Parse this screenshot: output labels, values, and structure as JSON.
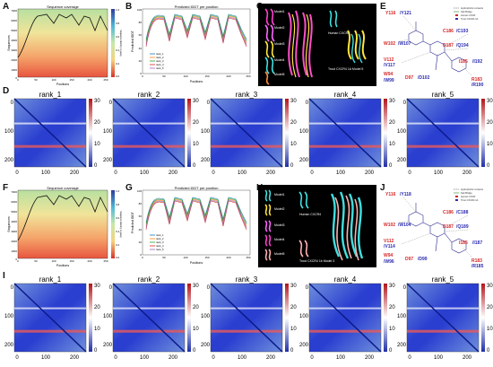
{
  "panels": {
    "A": "A",
    "B": "B",
    "C": "C",
    "D": "D",
    "E": "E",
    "F": "F",
    "G": "G",
    "H": "H",
    "I": "I",
    "J": "J"
  },
  "coverage": {
    "title": "Sequence coverage",
    "xlabel": "Positions",
    "ylabel": "Sequences",
    "yticks": [
      "7000",
      "6000",
      "5000",
      "4000",
      "3000",
      "2000",
      "1000",
      "0"
    ],
    "xticks": [
      "0",
      "50",
      "100",
      "150",
      "200",
      "250"
    ],
    "colorbar_ticks": [
      "1.0",
      "0.8",
      "0.6",
      "0.4",
      "0.2",
      "0.0"
    ],
    "colorbar_label": "Sequence identity to query"
  },
  "plddt": {
    "title": "Predicted lDDT per position",
    "xlabel": "Positions",
    "ylabel": "Predicted lDDT",
    "yticks": [
      "100",
      "80",
      "60",
      "40",
      "20",
      "0"
    ],
    "xticks": [
      "0",
      "50",
      "100",
      "150",
      "200",
      "250"
    ],
    "legend": [
      "rank_1",
      "rank_2",
      "rank_3",
      "rank_4",
      "rank_5"
    ],
    "colors": [
      "#1f77b4",
      "#ff7f0e",
      "#2ca02c",
      "#d62728",
      "#9467bd"
    ]
  },
  "structures": {
    "top": {
      "models": [
        "Model1",
        "Model2",
        "Model3",
        "Model4",
        "Model5"
      ],
      "human_label": "Human CXCR4",
      "trout_label": "Trout CXCR4 1A Model 5"
    },
    "bottom": {
      "models": [
        "Model1",
        "Model2",
        "Model3",
        "Model4",
        "Model5"
      ],
      "human_label": "Human CXCR4",
      "trout_label": "Trout CXCR4 1b Model 3"
    }
  },
  "interactions": {
    "legend": [
      "Hydrophobic contacts",
      "Salt Bridge",
      "Human CXCR",
      "Trout CXCR4 1A"
    ],
    "top": [
      {
        "human": "Y116",
        "trout": "Y121"
      },
      {
        "human": "C186",
        "trout": "C193"
      },
      {
        "human": "W102",
        "trout": "W107"
      },
      {
        "human": "D187",
        "trout": "Q194"
      },
      {
        "human": "V112",
        "trout": "V117"
      },
      {
        "human": "I185",
        "trout": "I192"
      },
      {
        "human": "W94",
        "trout": "W99"
      },
      {
        "human": "D97",
        "trout": "D102"
      },
      {
        "human": "R183",
        "trout": "R190"
      }
    ],
    "bottom": [
      {
        "human": "Y116",
        "trout": "Y118"
      },
      {
        "human": "C186",
        "trout": "C188"
      },
      {
        "human": "W102",
        "trout": "W104"
      },
      {
        "human": "D187",
        "trout": "Q189"
      },
      {
        "human": "V112",
        "trout": "V114"
      },
      {
        "human": "I185",
        "trout": "I187"
      },
      {
        "human": "W94",
        "trout": "W96"
      },
      {
        "human": "D97",
        "trout": "D99"
      },
      {
        "human": "R183",
        "trout": "R185"
      }
    ]
  },
  "pae": {
    "ranks": [
      "rank_1",
      "rank_2",
      "rank_3",
      "rank_4",
      "rank_5"
    ],
    "yticks": [
      "0",
      "100",
      "200"
    ],
    "xticks": [
      "0",
      "100",
      "200"
    ],
    "colorbar_ticks": [
      "30",
      "20",
      "10",
      "0"
    ]
  }
}
